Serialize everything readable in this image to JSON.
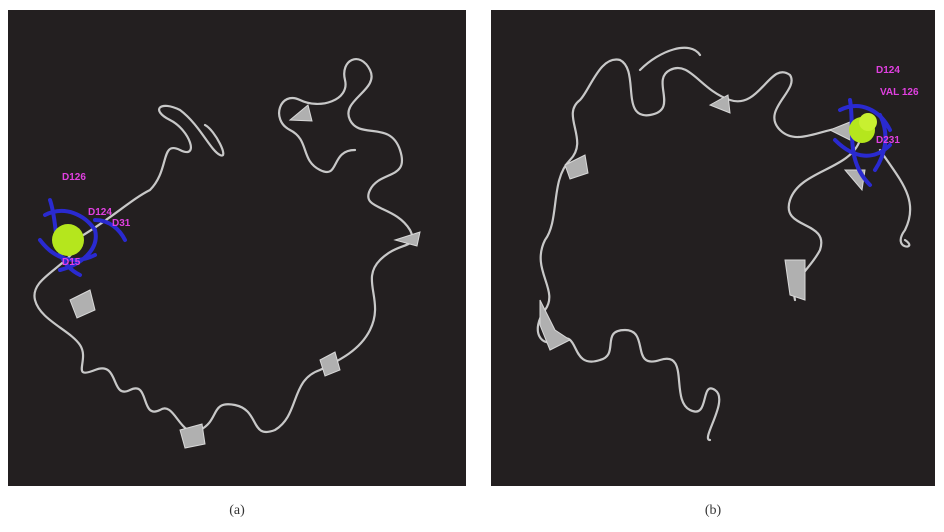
{
  "panels": [
    {
      "caption": "(a)",
      "labels": [
        "D126",
        "D124",
        "D31",
        "D15"
      ]
    },
    {
      "caption": "(b)",
      "labels": [
        "D124",
        "VAL 126",
        "D231"
      ]
    }
  ]
}
